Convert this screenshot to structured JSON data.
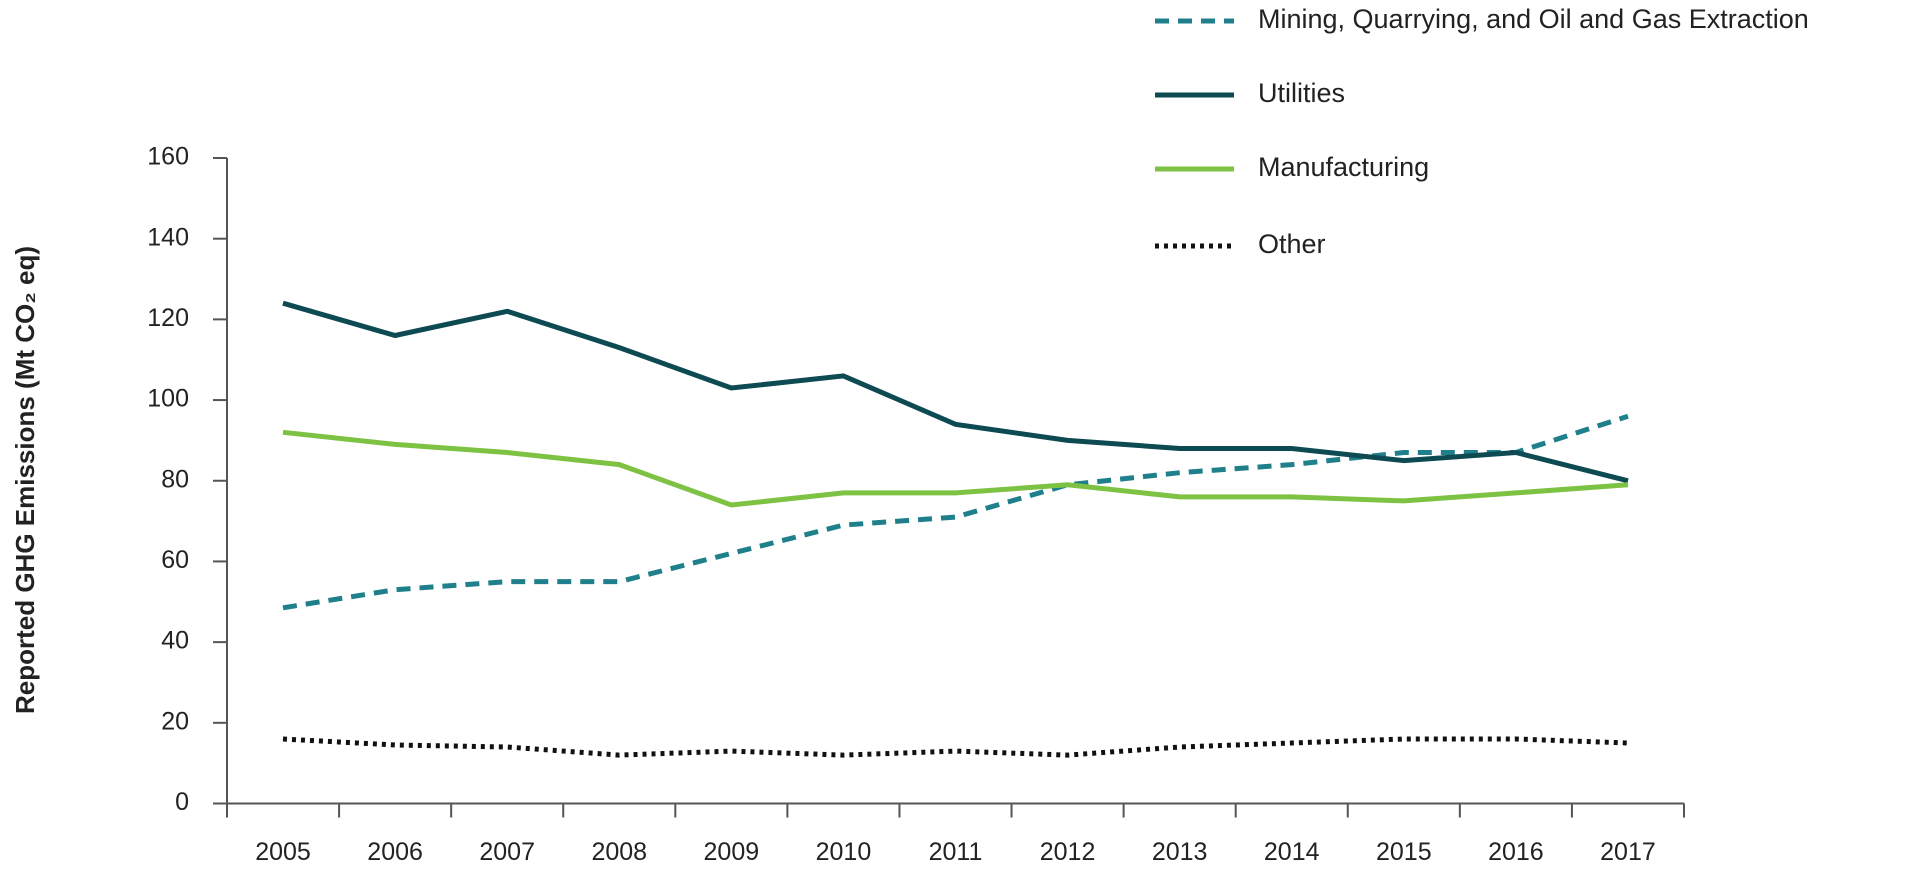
{
  "chart_data": {
    "type": "line",
    "ylabel": "Reported GHG Emissions (Mt CO₂ eq)",
    "categories": [
      "2005",
      "2006",
      "2007",
      "2008",
      "2009",
      "2010",
      "2011",
      "2012",
      "2013",
      "2014",
      "2015",
      "2016",
      "2017"
    ],
    "series": [
      {
        "name": "Mining, Quarrying, and Oil and Gas Extraction",
        "color": "#1f7f8a",
        "dash": "dashed",
        "values": [
          48.5,
          53,
          55,
          55,
          62,
          69,
          71,
          79,
          82,
          84,
          87,
          87,
          96
        ]
      },
      {
        "name": "Utilities",
        "color": "#0d4a52",
        "dash": "solid",
        "values": [
          124,
          116,
          122,
          113,
          103,
          106,
          94,
          90,
          88,
          88,
          85,
          87,
          80
        ]
      },
      {
        "name": "Manufacturing",
        "color": "#7dc242",
        "dash": "solid",
        "values": [
          92,
          89,
          87,
          84,
          74,
          77,
          77,
          79,
          76,
          76,
          75,
          77,
          79
        ]
      },
      {
        "name": "Other",
        "color": "#111111",
        "dash": "dotted",
        "values": [
          16,
          14.5,
          14,
          12,
          13,
          12,
          13,
          12,
          14,
          15,
          16,
          16,
          15
        ]
      }
    ],
    "ylim": [
      0,
      160
    ],
    "yticks": [
      0,
      20,
      40,
      60,
      80,
      100,
      120,
      140,
      160
    ],
    "grid": false
  }
}
